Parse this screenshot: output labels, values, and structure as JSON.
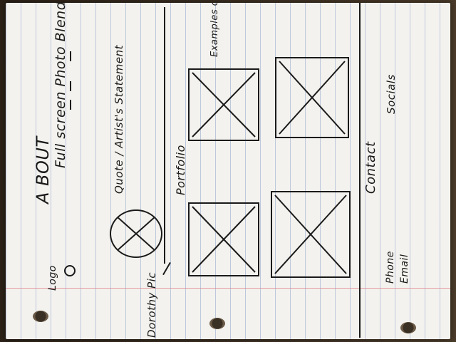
{
  "about": {
    "heading": "A BOUT",
    "hero": "Full screen Photo Blend"
  },
  "logo": {
    "label": "Logo"
  },
  "quote": {
    "label": "Quote / Artist's Statement"
  },
  "dorothy": {
    "label": "Dorothy Pic"
  },
  "portfolio": {
    "label": "Portfolio",
    "note": "Examples of work"
  },
  "contact": {
    "label": "Contact",
    "socials": "Socials",
    "phone": "Phone",
    "email": "Email"
  }
}
